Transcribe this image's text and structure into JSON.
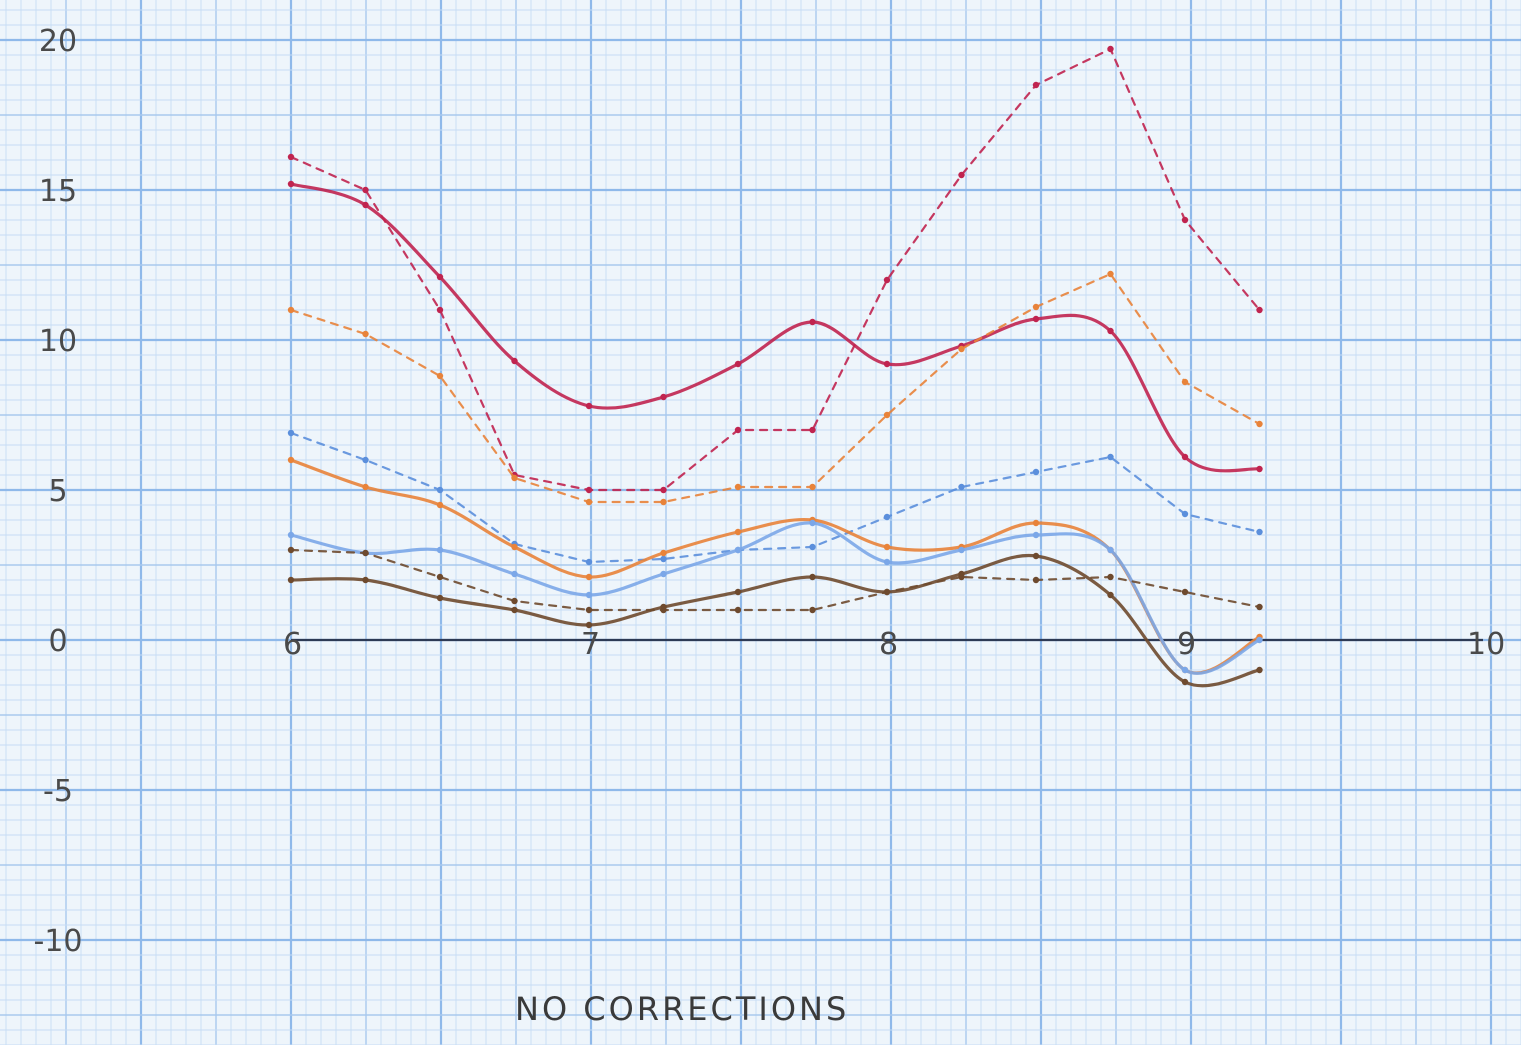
{
  "chart_data": {
    "type": "line",
    "caption": "NO CORRECTIONS",
    "x_ticks": [
      "6",
      "7",
      "8",
      "9",
      "10"
    ],
    "y_ticks": [
      "20",
      "15",
      "10",
      "5",
      "0",
      "-5",
      "-10"
    ],
    "xlim": [
      6,
      10
    ],
    "ylim": [
      -10,
      20
    ],
    "grid": true,
    "x": [
      6.0,
      6.25,
      6.5,
      6.75,
      7.0,
      7.25,
      7.5,
      7.75,
      8.0,
      8.25,
      8.5,
      8.75,
      9.0,
      9.25
    ],
    "series": [
      {
        "color": "#c0244f",
        "style": "solid",
        "values": [
          15.2,
          14.5,
          12.1,
          9.3,
          7.8,
          8.1,
          9.2,
          10.6,
          9.2,
          9.8,
          10.7,
          10.3,
          6.1,
          5.7
        ]
      },
      {
        "color": "#c0244f",
        "style": "dotted",
        "values": [
          16.1,
          15.0,
          11.0,
          5.5,
          5.0,
          5.0,
          7.0,
          7.0,
          12.0,
          15.5,
          18.5,
          19.7,
          14.0,
          11.0
        ]
      },
      {
        "color": "#e8833a",
        "style": "dotted",
        "values": [
          11.0,
          10.2,
          8.8,
          5.4,
          4.6,
          4.6,
          5.1,
          5.1,
          7.5,
          9.7,
          11.1,
          12.2,
          8.6,
          7.2
        ]
      },
      {
        "color": "#5b8fdc",
        "style": "dotted",
        "values": [
          6.9,
          6.0,
          5.0,
          3.2,
          2.6,
          2.7,
          3.0,
          3.1,
          4.1,
          5.1,
          5.6,
          6.1,
          4.2,
          3.6
        ]
      },
      {
        "color": "#e8833a",
        "style": "solid",
        "values": [
          6.0,
          5.1,
          4.5,
          3.1,
          2.1,
          2.9,
          3.6,
          4.0,
          3.1,
          3.1,
          3.9,
          3.0,
          -1.0,
          0.1
        ]
      },
      {
        "color": "#7ba7e8",
        "style": "solid",
        "values": [
          3.5,
          2.9,
          3.0,
          2.2,
          1.5,
          2.2,
          3.0,
          3.9,
          2.6,
          3.0,
          3.5,
          3.0,
          -1.0,
          0.0
        ]
      },
      {
        "color": "#6e4a2e",
        "style": "dotted",
        "values": [
          3.0,
          2.9,
          2.1,
          1.3,
          1.0,
          1.0,
          1.0,
          1.0,
          1.6,
          2.1,
          2.0,
          2.1,
          1.6,
          1.1
        ]
      },
      {
        "color": "#6e4a2e",
        "style": "solid",
        "values": [
          2.0,
          2.0,
          1.4,
          1.0,
          0.5,
          1.1,
          1.6,
          2.1,
          1.6,
          2.2,
          2.8,
          1.5,
          -1.4,
          -1.0
        ]
      }
    ]
  }
}
